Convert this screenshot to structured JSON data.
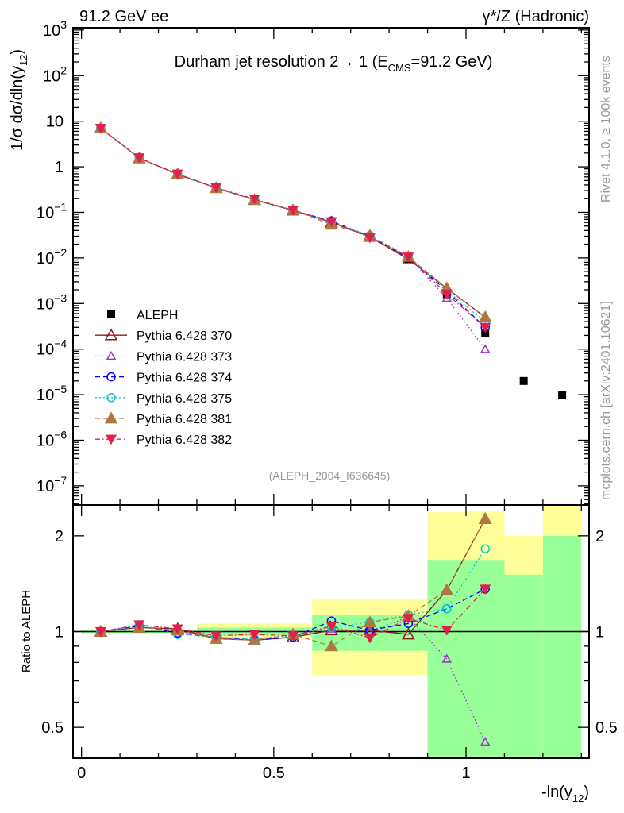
{
  "header": {
    "left": "91.2 GeV ee",
    "right": "γ*/Z (Hadronic)"
  },
  "side_labels": {
    "rivet": "Rivet 4.1.0, ≥ 100k events",
    "mcplots": "mcplots.cern.ch [arXiv:2401.10621]"
  },
  "chart_data": {
    "type": "line",
    "title": {
      "main": "Durham jet resolution 2→ 1 (E",
      "sub": "CMS",
      "tail": "=91.2 GeV)"
    },
    "analysis_id": "(ALEPH_2004_I636645)",
    "ylabel": {
      "main": "1/σ  dσ/dln(y",
      "sub": "12",
      "tail": ")"
    },
    "ratio_ylabel": "Ratio to ALEPH",
    "xlabel": {
      "main": "-ln(y",
      "sub": "12",
      "tail": ")"
    },
    "xlim": [
      -0.022,
      1.32
    ],
    "ylim_log10": [
      -7.42,
      3.05
    ],
    "ratio_ylim": [
      0.4,
      2.5
    ],
    "x_ticks": [
      {
        "v": 0,
        "label": "0"
      },
      {
        "v": 0.5,
        "label": "0.5"
      },
      {
        "v": 1,
        "label": "1"
      }
    ],
    "y_ticks": [
      {
        "exp": 3,
        "base": "10",
        "sup": "3"
      },
      {
        "exp": 2,
        "base": "10",
        "sup": "2"
      },
      {
        "exp": 1,
        "base": "10",
        "sup": ""
      },
      {
        "exp": 0,
        "base": "1",
        "sup": ""
      },
      {
        "exp": -1,
        "base": "10",
        "sup": "−1"
      },
      {
        "exp": -2,
        "base": "10",
        "sup": "−2"
      },
      {
        "exp": -3,
        "base": "10",
        "sup": "−3"
      },
      {
        "exp": -4,
        "base": "10",
        "sup": "−4"
      },
      {
        "exp": -5,
        "base": "10",
        "sup": "−5"
      },
      {
        "exp": -6,
        "base": "10",
        "sup": "−6"
      },
      {
        "exp": -7,
        "base": "10",
        "sup": "−7"
      }
    ],
    "ratio_ticks": [
      {
        "v": 2,
        "label": "2"
      },
      {
        "v": 1,
        "label": "1"
      },
      {
        "v": 0.5,
        "label": "0.5"
      }
    ],
    "bins": [
      [
        0,
        0.1
      ],
      [
        0.1,
        0.2
      ],
      [
        0.2,
        0.3
      ],
      [
        0.3,
        0.4
      ],
      [
        0.4,
        0.5
      ],
      [
        0.5,
        0.6
      ],
      [
        0.6,
        0.7
      ],
      [
        0.7,
        0.8
      ],
      [
        0.8,
        0.9
      ],
      [
        0.9,
        1.0
      ],
      [
        1.0,
        1.1
      ],
      [
        1.1,
        1.2
      ],
      [
        1.2,
        1.3
      ]
    ],
    "data": {
      "name": "ALEPH",
      "x": [
        0.05,
        0.15,
        0.25,
        0.35,
        0.45,
        0.55,
        0.65,
        0.75,
        0.85,
        0.95,
        1.05,
        1.15,
        1.25
      ],
      "y": [
        7.0,
        1.5,
        0.68,
        0.36,
        0.2,
        0.115,
        0.06,
        0.029,
        0.0095,
        0.0016,
        0.00022,
        2e-05,
        1e-05
      ],
      "band_inner": [
        [
          0.99,
          1.01
        ],
        [
          0.99,
          1.01
        ],
        [
          0.99,
          1.01
        ],
        [
          0.97,
          1.03
        ],
        [
          0.97,
          1.03
        ],
        [
          0.97,
          1.03
        ],
        [
          0.87,
          1.13
        ],
        [
          0.87,
          1.13
        ],
        [
          0.87,
          1.13
        ],
        [
          0.3,
          1.68
        ],
        [
          0.3,
          1.68
        ],
        [
          0.3,
          1.51
        ],
        [
          0.3,
          2.0
        ]
      ],
      "band_outer": [
        [
          0.985,
          1.015
        ],
        [
          0.985,
          1.015
        ],
        [
          0.985,
          1.015
        ],
        [
          0.95,
          1.06
        ],
        [
          0.95,
          1.06
        ],
        [
          0.95,
          1.06
        ],
        [
          0.73,
          1.27
        ],
        [
          0.73,
          1.27
        ],
        [
          0.73,
          1.27
        ],
        [
          0.3,
          2.37
        ],
        [
          0.3,
          2.4
        ],
        [
          0.5,
          2.0
        ],
        [
          0.3,
          2.6
        ]
      ]
    },
    "series": [
      {
        "name": "Pythia 6.428 370",
        "color": "#8b1a1a",
        "dash": "",
        "marker": "tri-open",
        "ratio": [
          1.0,
          1.03,
          1.02,
          0.95,
          0.94,
          0.96,
          1.01,
          1.01,
          0.98,
          1.35,
          2.26
        ]
      },
      {
        "name": "Pythia 6.428 373",
        "color": "#9933cc",
        "dash": "1.5,3",
        "marker": "tri-open-small",
        "ratio": [
          1.0,
          1.04,
          1.0,
          0.96,
          0.95,
          0.97,
          1.02,
          1.0,
          1.11,
          0.82,
          0.45
        ]
      },
      {
        "name": "Pythia 6.428 374",
        "color": "#0000ff",
        "dash": "6,4",
        "marker": "circle-open",
        "ratio": [
          1.0,
          1.04,
          0.99,
          0.96,
          0.94,
          0.96,
          1.08,
          1.01,
          1.06,
          1.18,
          1.36
        ]
      },
      {
        "name": "Pythia 6.428 375",
        "color": "#00cccc",
        "dash": "2,3",
        "marker": "circle-open",
        "ratio": [
          1.0,
          1.05,
          0.98,
          0.96,
          0.95,
          0.97,
          1.03,
          1.07,
          1.13,
          1.18,
          1.82
        ]
      },
      {
        "name": "Pythia 6.428 381",
        "color": "#b07840",
        "dash": "6,4",
        "marker": "tri-filled",
        "ratio": [
          1.0,
          1.03,
          1.01,
          0.95,
          0.94,
          0.98,
          0.9,
          1.07,
          1.12,
          1.35,
          2.26
        ]
      },
      {
        "name": "Pythia 6.428 382",
        "color": "#e0204a",
        "dash": "6,3,1.5,3",
        "marker": "tri-down-filled",
        "ratio": [
          1.0,
          1.05,
          1.02,
          0.97,
          0.98,
          0.97,
          1.04,
          0.955,
          1.1,
          1.01,
          1.36
        ]
      }
    ],
    "colors": {
      "band_inner": "#99ff99",
      "band_outer": "#ffff99"
    }
  }
}
